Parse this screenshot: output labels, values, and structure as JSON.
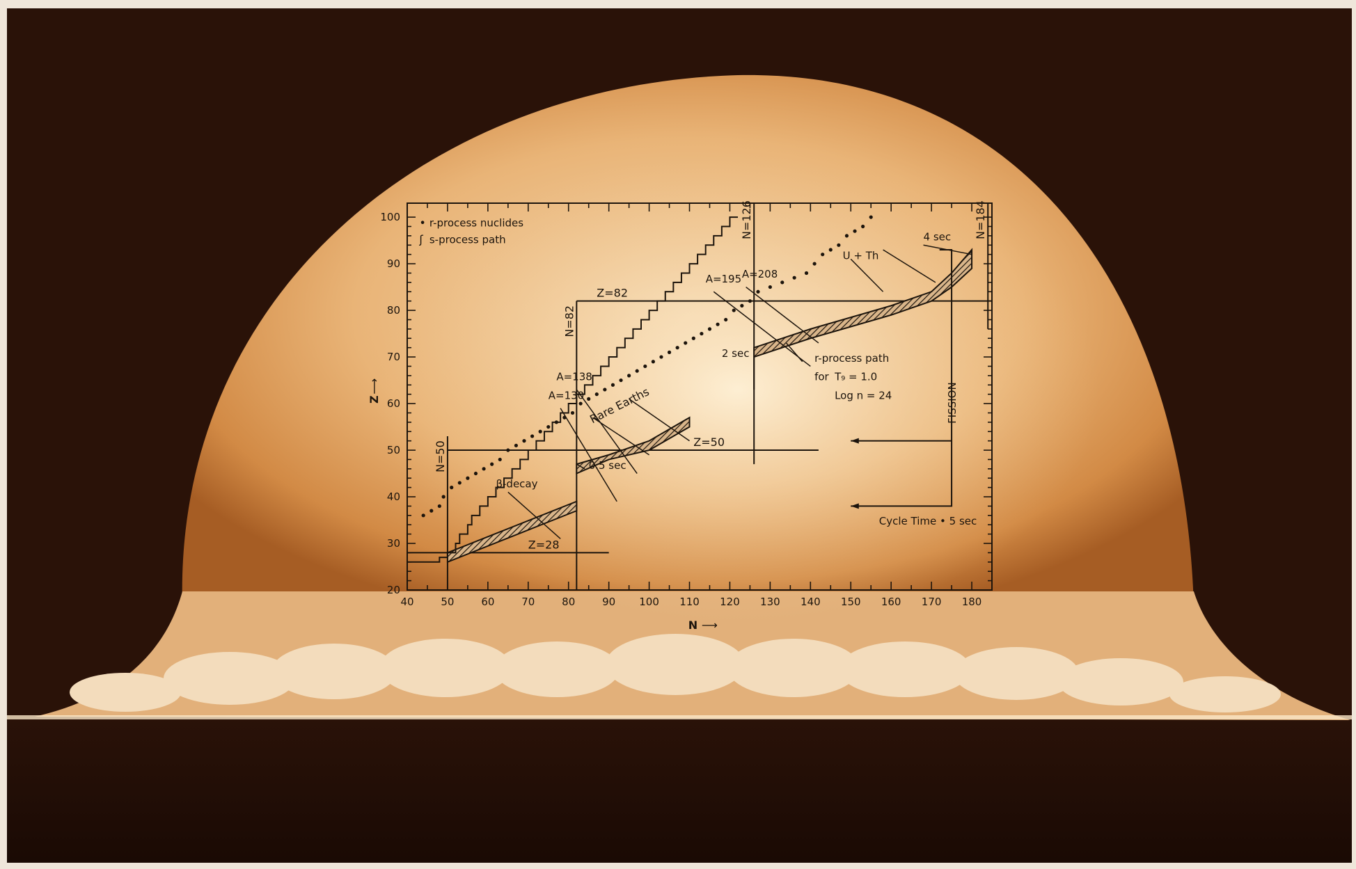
{
  "colors": {
    "frame": "#efe6da",
    "sky": "#2a1208",
    "fireball_core": "#f2cfa0",
    "fireball_edge": "#c87a34",
    "ink": "#1c140c"
  },
  "chart_data": {
    "type": "scatter",
    "xlabel": "N",
    "ylabel": "Z",
    "xlim": [
      40,
      185
    ],
    "ylim": [
      20,
      103
    ],
    "xticks": [
      40,
      50,
      60,
      70,
      80,
      90,
      100,
      110,
      120,
      130,
      140,
      150,
      160,
      170,
      180
    ],
    "yticks": [
      20,
      30,
      40,
      50,
      60,
      70,
      80,
      90,
      100
    ],
    "legend": [
      {
        "marker": "•",
        "label": "r-process nuclides"
      },
      {
        "marker": "ʃ",
        "label": "s-process path"
      }
    ],
    "legend_position": "top-left",
    "grid": false,
    "magic_lines": [
      {
        "label": "N=50",
        "axis": "N",
        "value": 50,
        "from": 20,
        "to": 53
      },
      {
        "label": "N=82",
        "axis": "N",
        "value": 82,
        "from": 20,
        "to": 82
      },
      {
        "label": "N=126",
        "axis": "N",
        "value": 126,
        "from": 47,
        "to": 103
      },
      {
        "label": "N=184",
        "axis": "N",
        "value": 184,
        "from": 76,
        "to": 103
      },
      {
        "label": "Z=28",
        "axis": "Z",
        "value": 28,
        "from": 40,
        "to": 90
      },
      {
        "label": "Z=50",
        "axis": "Z",
        "value": 50,
        "from": 50,
        "to": 142
      },
      {
        "label": "Z=82",
        "axis": "Z",
        "value": 82,
        "from": 82,
        "to": 185
      }
    ],
    "s_process_path": [
      [
        40,
        26
      ],
      [
        48,
        26
      ],
      [
        48,
        27
      ],
      [
        50,
        27
      ],
      [
        50,
        28
      ],
      [
        52,
        28
      ],
      [
        52,
        30
      ],
      [
        53,
        30
      ],
      [
        53,
        32
      ],
      [
        55,
        32
      ],
      [
        55,
        34
      ],
      [
        56,
        34
      ],
      [
        56,
        36
      ],
      [
        58,
        36
      ],
      [
        58,
        38
      ],
      [
        60,
        38
      ],
      [
        60,
        40
      ],
      [
        62,
        40
      ],
      [
        62,
        42
      ],
      [
        64,
        42
      ],
      [
        64,
        44
      ],
      [
        66,
        44
      ],
      [
        66,
        46
      ],
      [
        68,
        46
      ],
      [
        68,
        48
      ],
      [
        70,
        48
      ],
      [
        70,
        50
      ],
      [
        72,
        50
      ],
      [
        72,
        52
      ],
      [
        74,
        52
      ],
      [
        74,
        54
      ],
      [
        76,
        54
      ],
      [
        76,
        56
      ],
      [
        78,
        56
      ],
      [
        78,
        58
      ],
      [
        80,
        58
      ],
      [
        80,
        60
      ],
      [
        82,
        60
      ],
      [
        82,
        62
      ],
      [
        84,
        62
      ],
      [
        84,
        64
      ],
      [
        86,
        64
      ],
      [
        86,
        66
      ],
      [
        88,
        66
      ],
      [
        88,
        68
      ],
      [
        90,
        68
      ],
      [
        90,
        70
      ],
      [
        92,
        70
      ],
      [
        92,
        72
      ],
      [
        94,
        72
      ],
      [
        94,
        74
      ],
      [
        96,
        74
      ],
      [
        96,
        76
      ],
      [
        98,
        76
      ],
      [
        98,
        78
      ],
      [
        100,
        78
      ],
      [
        100,
        80
      ],
      [
        102,
        80
      ],
      [
        102,
        82
      ],
      [
        104,
        82
      ],
      [
        104,
        84
      ],
      [
        106,
        84
      ],
      [
        106,
        86
      ],
      [
        108,
        86
      ],
      [
        108,
        88
      ],
      [
        110,
        88
      ],
      [
        110,
        90
      ],
      [
        112,
        90
      ],
      [
        112,
        92
      ],
      [
        114,
        92
      ],
      [
        114,
        94
      ],
      [
        116,
        94
      ],
      [
        116,
        96
      ],
      [
        118,
        96
      ],
      [
        118,
        98
      ],
      [
        120,
        98
      ],
      [
        120,
        100
      ],
      [
        122,
        100
      ]
    ],
    "r_process_nuclides": [
      [
        44,
        36
      ],
      [
        46,
        37
      ],
      [
        48,
        38
      ],
      [
        49,
        40
      ],
      [
        51,
        42
      ],
      [
        53,
        43
      ],
      [
        55,
        44
      ],
      [
        57,
        45
      ],
      [
        59,
        46
      ],
      [
        61,
        47
      ],
      [
        63,
        48
      ],
      [
        65,
        50
      ],
      [
        67,
        51
      ],
      [
        69,
        52
      ],
      [
        71,
        53
      ],
      [
        73,
        54
      ],
      [
        75,
        55
      ],
      [
        77,
        56
      ],
      [
        79,
        57
      ],
      [
        81,
        58
      ],
      [
        83,
        60
      ],
      [
        85,
        61
      ],
      [
        87,
        62
      ],
      [
        89,
        63
      ],
      [
        91,
        64
      ],
      [
        93,
        65
      ],
      [
        95,
        66
      ],
      [
        97,
        67
      ],
      [
        99,
        68
      ],
      [
        101,
        69
      ],
      [
        103,
        70
      ],
      [
        105,
        71
      ],
      [
        107,
        72
      ],
      [
        109,
        73
      ],
      [
        111,
        74
      ],
      [
        113,
        75
      ],
      [
        115,
        76
      ],
      [
        117,
        77
      ],
      [
        119,
        78
      ],
      [
        121,
        80
      ],
      [
        123,
        81
      ],
      [
        125,
        82
      ],
      [
        127,
        84
      ],
      [
        130,
        85
      ],
      [
        133,
        86
      ],
      [
        136,
        87
      ],
      [
        139,
        88
      ],
      [
        141,
        90
      ],
      [
        143,
        92
      ],
      [
        145,
        93
      ],
      [
        147,
        94
      ],
      [
        149,
        96
      ],
      [
        151,
        97
      ],
      [
        153,
        98
      ],
      [
        155,
        100
      ]
    ],
    "r_process_band": {
      "upper": [
        [
          50,
          28
        ],
        [
          82,
          39
        ],
        [
          82,
          47
        ],
        [
          90,
          49
        ],
        [
          100,
          52
        ],
        [
          110,
          57
        ],
        [
          126,
          65
        ],
        [
          126,
          72
        ],
        [
          140,
          76
        ],
        [
          160,
          81
        ],
        [
          170,
          84
        ],
        [
          175,
          88
        ],
        [
          180,
          93
        ]
      ],
      "lower": [
        [
          50,
          26
        ],
        [
          82,
          37
        ],
        [
          82,
          45
        ],
        [
          90,
          48
        ],
        [
          100,
          50
        ],
        [
          110,
          55
        ],
        [
          126,
          63
        ],
        [
          126,
          70
        ],
        [
          140,
          74
        ],
        [
          160,
          79
        ],
        [
          170,
          82
        ],
        [
          175,
          85
        ],
        [
          180,
          89
        ]
      ]
    },
    "annotations": [
      {
        "text": "A=130",
        "n": 75,
        "z": 61
      },
      {
        "text": "A=138",
        "n": 77,
        "z": 65
      },
      {
        "text": "A=195",
        "n": 114,
        "z": 86
      },
      {
        "text": "A=208",
        "n": 123,
        "z": 87
      },
      {
        "text": "β-decay",
        "n": 62,
        "z": 42
      },
      {
        "text": "0.5 sec",
        "n": 85,
        "z": 46
      },
      {
        "text": "Rare Earths",
        "n": 98,
        "z": 59
      },
      {
        "text": "2 sec",
        "n": 118,
        "z": 70
      },
      {
        "text": "U + Th",
        "n": 148,
        "z": 91
      },
      {
        "text": "4 sec",
        "n": 168,
        "z": 95
      },
      {
        "text": "r-process path",
        "n": 141,
        "z": 69
      },
      {
        "text": "for",
        "n": 141,
        "z": 65
      },
      {
        "text": "T₉ = 1.0",
        "n": 146,
        "z": 65
      },
      {
        "text": "Log n = 24",
        "n": 146,
        "z": 61
      },
      {
        "text": "FISSION",
        "n": 175,
        "z": 56
      },
      {
        "text": "Cycle  Time • 5 sec",
        "n": 157,
        "z": 34
      }
    ]
  }
}
